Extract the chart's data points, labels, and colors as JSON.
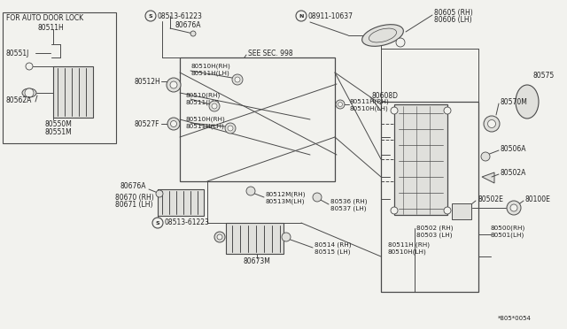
{
  "bg_color": "#f2f2ee",
  "line_color": "#4a4a4a",
  "text_color": "#222222",
  "white": "#ffffff",
  "gray_part": "#c8c8c8",
  "light_gray": "#e0e0dc",
  "labels": {
    "inset_title": "FOR AUTO DOOR LOCK",
    "l80511H_inset": "80511H",
    "l80551J": "80551J",
    "l80562A": "80562A",
    "l80550M": "80550M",
    "l80551M": "80551M",
    "screw1": "S08513-61223",
    "l80676A_top": "80676A",
    "nut": "N08911-10637",
    "l80605": "80605 (RH)",
    "l80606": "80606 (LH)",
    "seesec": "SEE SEC. 998",
    "l80512H": "80512H",
    "l80527F": "80527F",
    "l80510RH_box": "80510H(RH)",
    "l80511LH_box": "80511H(LH)",
    "l80510RH_mid": "80510(RH)",
    "l80511LH_mid": "80511(LH)",
    "l80510H_low": "80510H(RH)",
    "l80511H_low": "80511H(LH)",
    "l80608D": "80608D",
    "l80511H_rh": "80511H(RH)",
    "l80510H_lh": "80510H(LH)",
    "l80575": "80575",
    "l80570M": "80570M",
    "l80506A": "80506A",
    "l80502A": "80502A",
    "l80502E": "80502E",
    "l80100E": "80100E",
    "l80512M": "80512M(RH)",
    "l80513M": "80513M(LH)",
    "l80536": "80536 (RH)",
    "l80537": "80537 (LH)",
    "l80502": "80502 (RH)",
    "l80503": "80503 (LH)",
    "l80500": "80500(RH)",
    "l80501": "80501(LH)",
    "l80676A_bot": "80676A",
    "l80670": "80670 (RH)",
    "l80671": "80671 (LH)",
    "screw2": "S08513-61223",
    "l80673M": "80673M",
    "l80514": "80514 (RH)",
    "l80515": "80515 (LH)",
    "l80511H_br": "80511H (RH)",
    "l80510H_br": "80510H(LH)",
    "ref": "*805*0054"
  }
}
